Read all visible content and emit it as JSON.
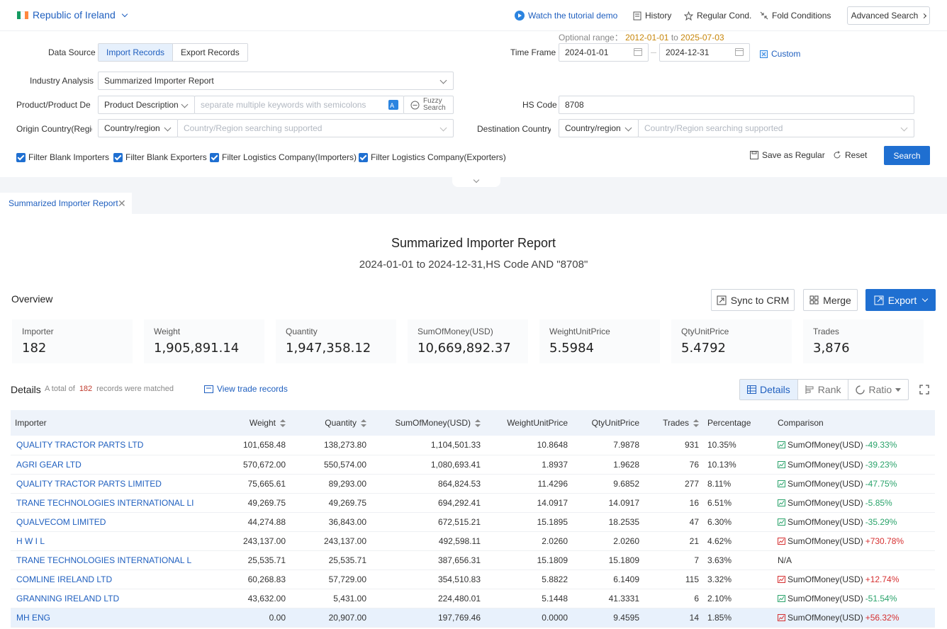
{
  "header": {
    "country": "Republic of Ireland",
    "flag_colors": [
      "#169b62",
      "#ffffff",
      "#ff883e"
    ],
    "tutorial": "Watch the tutorial demo",
    "history": "History",
    "regular_cond": "Regular Cond.",
    "fold": "Fold Conditions",
    "advanced": "Advanced Search"
  },
  "filters": {
    "data_source_label": "Data Source",
    "import_label": "Import Records",
    "export_label": "Export Records",
    "optional_range_prefix": "Optional range：",
    "optional_from": "2012-01-01",
    "optional_to_word": "to",
    "optional_to": "2025-07-03",
    "time_frame_label": "Time Frame",
    "date_from": "2024-01-01",
    "date_to": "2024-12-31",
    "custom": "Custom",
    "industry_label": "Industry Analysis",
    "industry_value": "Summarized Importer Report",
    "product_label": "Product/Product Description",
    "product_type": "Product Description",
    "product_placeholder": "separate multiple keywords with semicolons",
    "fuzzy_line1": "Fuzzy",
    "fuzzy_line2": "Search",
    "hs_label": "HS Code",
    "hs_value": "8708",
    "origin_label": "Origin Country(Region)",
    "origin_type": "Country/region",
    "origin_placeholder": "Country/Region searching supported",
    "dest_label": "Destination Country(Region)",
    "dest_type": "Country/region",
    "dest_placeholder": "Country/Region searching supported",
    "cb1": "Filter Blank Importers",
    "cb2": "Filter Blank Exporters",
    "cb3": "Filter Logistics Company(Importers)",
    "cb4": "Filter Logistics Company(Exporters)",
    "save_regular": "Save as Regular",
    "reset": "Reset",
    "search": "Search"
  },
  "tab": {
    "label": "Summarized Importer Report",
    "close": "✕"
  },
  "report": {
    "title": "Summarized Importer Report",
    "subtitle": "2024-01-01 to 2024-12-31,HS Code AND \"8708\"",
    "overview": "Overview",
    "sync": "Sync to CRM",
    "merge": "Merge",
    "export": "Export"
  },
  "stats": [
    {
      "label": "Importer",
      "value": "182"
    },
    {
      "label": "Weight",
      "value": "1,905,891.14"
    },
    {
      "label": "Quantity",
      "value": "1,947,358.12"
    },
    {
      "label": "SumOfMoney(USD)",
      "value": "10,669,892.37"
    },
    {
      "label": "WeightUnitPrice",
      "value": "5.5984"
    },
    {
      "label": "QtyUnitPrice",
      "value": "5.4792"
    },
    {
      "label": "Trades",
      "value": "3,876"
    }
  ],
  "details": {
    "title": "Details",
    "count_prefix": "A total of",
    "count": "182",
    "count_suffix": "records were matched",
    "view_trade": "View trade records",
    "view_details": "Details",
    "view_rank": "Rank",
    "view_ratio": "Ratio"
  },
  "table": {
    "headers": [
      "Importer",
      "Weight",
      "Quantity",
      "SumOfMoney(USD)",
      "WeightUnitPrice",
      "QtyUnitPrice",
      "Trades",
      "Percentage",
      "Comparison"
    ],
    "comparison_metric": "SumOfMoney(USD)",
    "trend_colors": {
      "down": "#2aa36b",
      "up": "#d63031"
    },
    "rows": [
      {
        "name": "QUALITY TRACTOR PARTS LTD",
        "weight": "101,658.48",
        "qty": "138,273.80",
        "money": "1,104,501.33",
        "wup": "10.8648",
        "qup": "7.9878",
        "trades": "931",
        "pct": "10.35%",
        "cmp": "-49.33%",
        "dir": "down"
      },
      {
        "name": "AGRI GEAR LTD",
        "weight": "570,672.00",
        "qty": "550,574.00",
        "money": "1,080,693.41",
        "wup": "1.8937",
        "qup": "1.9628",
        "trades": "76",
        "pct": "10.13%",
        "cmp": "-39.23%",
        "dir": "down"
      },
      {
        "name": "QUALITY TRACTOR PARTS LIMITED",
        "weight": "75,665.61",
        "qty": "89,293.00",
        "money": "864,824.53",
        "wup": "11.4296",
        "qup": "9.6852",
        "trades": "277",
        "pct": "8.11%",
        "cmp": "-47.75%",
        "dir": "down"
      },
      {
        "name": "TRANE TECHNOLOGIES INTERNATIONAL LI",
        "weight": "49,269.75",
        "qty": "49,269.75",
        "money": "694,292.41",
        "wup": "14.0917",
        "qup": "14.0917",
        "trades": "16",
        "pct": "6.51%",
        "cmp": "-5.85%",
        "dir": "down"
      },
      {
        "name": "QUALVECOM LIMITED",
        "weight": "44,274.88",
        "qty": "36,843.00",
        "money": "672,515.21",
        "wup": "15.1895",
        "qup": "18.2535",
        "trades": "47",
        "pct": "6.30%",
        "cmp": "-35.29%",
        "dir": "down"
      },
      {
        "name": "H W I L",
        "weight": "243,137.00",
        "qty": "243,137.00",
        "money": "492,598.11",
        "wup": "2.0260",
        "qup": "2.0260",
        "trades": "21",
        "pct": "4.62%",
        "cmp": "+730.78%",
        "dir": "up"
      },
      {
        "name": "TRANE TECHNOLOGIES INTERNATIONAL L",
        "weight": "25,535.71",
        "qty": "25,535.71",
        "money": "387,656.31",
        "wup": "15.1809",
        "qup": "15.1809",
        "trades": "7",
        "pct": "3.63%",
        "cmp": "N/A",
        "dir": "none"
      },
      {
        "name": "COMLINE IRELAND LTD",
        "weight": "60,268.83",
        "qty": "57,729.00",
        "money": "354,510.83",
        "wup": "5.8822",
        "qup": "6.1409",
        "trades": "115",
        "pct": "3.32%",
        "cmp": "+12.74%",
        "dir": "up"
      },
      {
        "name": "GRANNING IRELAND LTD",
        "weight": "43,632.00",
        "qty": "5,431.00",
        "money": "224,480.01",
        "wup": "5.1448",
        "qup": "41.3331",
        "trades": "6",
        "pct": "2.10%",
        "cmp": "-51.54%",
        "dir": "down"
      },
      {
        "name": "MH ENG",
        "weight": "0.00",
        "qty": "20,907.00",
        "money": "197,769.46",
        "wup": "0.0000",
        "qup": "9.4595",
        "trades": "14",
        "pct": "1.85%",
        "cmp": "+56.32%",
        "dir": "up"
      }
    ]
  }
}
